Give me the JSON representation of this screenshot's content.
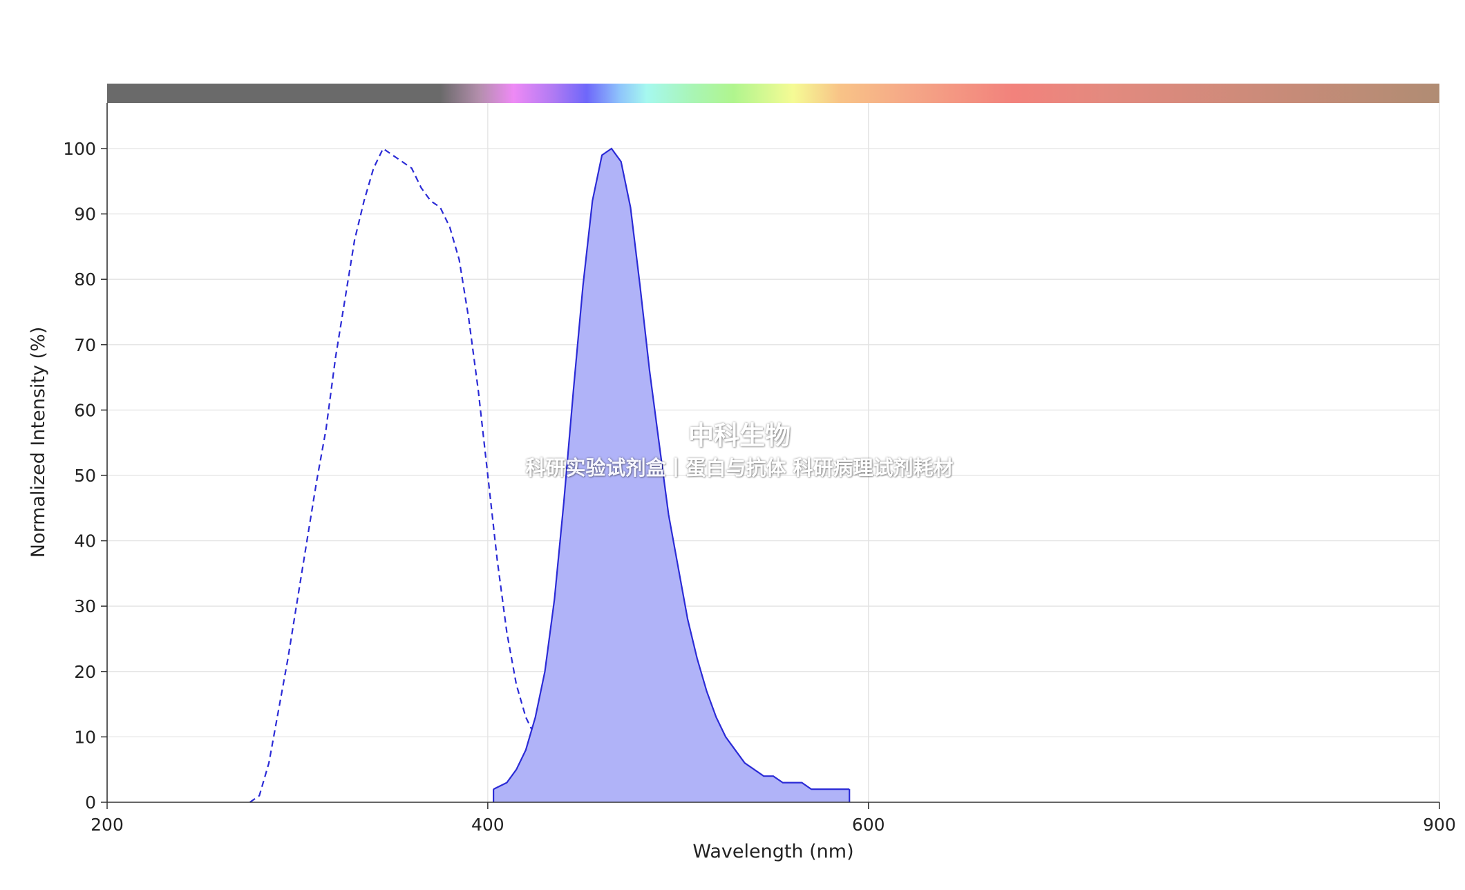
{
  "chart_data": {
    "type": "area",
    "xlabel": "Wavelength (nm)",
    "ylabel": "Normalized Intensity (%)",
    "xlim": [
      200,
      900
    ],
    "ylim": [
      0,
      100
    ],
    "xticks": [
      200,
      400,
      600,
      900
    ],
    "yticks": [
      0,
      10,
      20,
      30,
      40,
      50,
      60,
      70,
      80,
      90,
      100
    ],
    "grid": true,
    "legend": "none",
    "spectrum_bar": true,
    "series": [
      {
        "style": "dashed-line",
        "color": "#2b2bd6",
        "x": [
          275,
          280,
          285,
          290,
          295,
          300,
          305,
          310,
          315,
          320,
          325,
          330,
          335,
          340,
          345,
          350,
          355,
          360,
          365,
          370,
          375,
          380,
          385,
          390,
          395,
          400,
          405,
          410,
          415,
          420,
          425,
          430,
          435,
          440,
          445,
          450,
          455
        ],
        "y": [
          0,
          1,
          6,
          14,
          22,
          31,
          40,
          49,
          57,
          68,
          77,
          86,
          92,
          97,
          100,
          99,
          98,
          97,
          94,
          92,
          91,
          88,
          83,
          74,
          63,
          50,
          37,
          26,
          18,
          13,
          10,
          8,
          5,
          3,
          1,
          1,
          1
        ]
      },
      {
        "style": "filled-area",
        "color": "#2b2bd6",
        "fill": "#b0b3f8",
        "x": [
          403,
          410,
          415,
          420,
          425,
          430,
          435,
          440,
          445,
          450,
          455,
          460,
          465,
          470,
          475,
          480,
          485,
          490,
          495,
          500,
          505,
          510,
          515,
          520,
          525,
          530,
          535,
          540,
          545,
          550,
          555,
          560,
          565,
          570,
          575,
          580,
          585,
          590
        ],
        "y": [
          2,
          3,
          5,
          8,
          13,
          20,
          31,
          46,
          63,
          79,
          92,
          99,
          100,
          98,
          91,
          79,
          66,
          55,
          44,
          36,
          28,
          22,
          17,
          13,
          10,
          8,
          6,
          5,
          4,
          4,
          3,
          3,
          3,
          2,
          2,
          2,
          2,
          2
        ]
      }
    ]
  },
  "watermark": {
    "title": "中科生物",
    "subtitle": "科研实验试剂盒丨蛋白与抗体 科研病理试剂耗材"
  }
}
